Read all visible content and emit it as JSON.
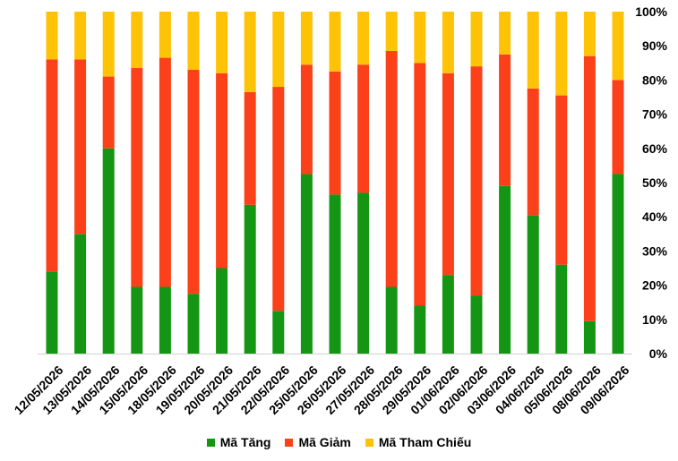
{
  "chart_data": {
    "type": "bar",
    "stacked": true,
    "normalized": true,
    "categories": [
      "12/05/2026",
      "13/05/2026",
      "14/05/2026",
      "15/05/2026",
      "18/05/2026",
      "19/05/2026",
      "20/05/2026",
      "21/05/2026",
      "22/05/2026",
      "25/05/2026",
      "26/05/2026",
      "27/05/2026",
      "28/05/2026",
      "29/05/2026",
      "01/06/2026",
      "02/06/2026",
      "03/06/2026",
      "04/06/2026",
      "05/06/2026",
      "08/06/2026",
      "09/06/2026"
    ],
    "series": [
      {
        "name": "Mã Tăng",
        "color": "#149614",
        "values": [
          24,
          35,
          60,
          19.5,
          19.5,
          17.5,
          25,
          43.5,
          12.5,
          52.5,
          46.5,
          47,
          19.5,
          14,
          23,
          17,
          49,
          40.5,
          26,
          9.5,
          52.5
        ]
      },
      {
        "name": "Mã Giảm",
        "color": "#fc4019",
        "values": [
          62,
          51,
          21,
          64,
          67,
          65.5,
          57,
          33,
          65.5,
          32,
          36,
          37.5,
          69,
          71,
          59,
          67,
          38.5,
          37,
          49.5,
          77.5,
          27.5
        ]
      },
      {
        "name": "Mã Tham Chiếu",
        "color": "#fec307",
        "values": [
          14,
          14,
          19,
          16.5,
          13.5,
          17,
          18,
          23.5,
          22,
          15.5,
          17.5,
          15.5,
          11.5,
          15,
          18,
          16,
          12.5,
          22.5,
          24.5,
          13,
          20
        ]
      }
    ],
    "y_ticks": [
      "0%",
      "10%",
      "20%",
      "30%",
      "40%",
      "50%",
      "60%",
      "70%",
      "80%",
      "90%",
      "100%"
    ],
    "ylim": [
      0,
      100
    ],
    "grid": false,
    "legend_position": "bottom"
  }
}
